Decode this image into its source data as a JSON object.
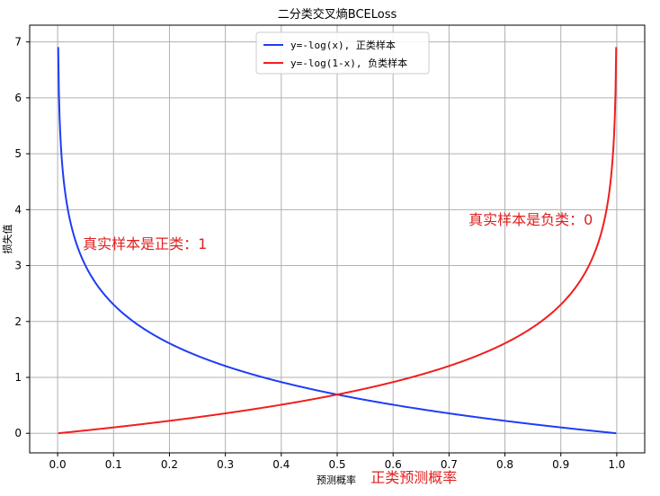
{
  "chart_data": {
    "type": "line",
    "title": "二分类交叉熵BCELoss",
    "xlabel": "预测概率",
    "ylabel": "损失值",
    "xlim": [
      -0.05,
      1.05
    ],
    "ylim": [
      -0.35,
      7.3
    ],
    "xticks": [
      0.0,
      0.1,
      0.2,
      0.3,
      0.4,
      0.5,
      0.6,
      0.7,
      0.8,
      0.9,
      1.0
    ],
    "xtick_labels": [
      "0.0",
      "0.1",
      "0.2",
      "0.3",
      "0.4",
      "0.5",
      "0.6",
      "0.7",
      "0.8",
      "0.9",
      "1.0"
    ],
    "yticks": [
      0,
      1,
      2,
      3,
      4,
      5,
      6,
      7
    ],
    "ytick_labels": [
      "0",
      "1",
      "2",
      "3",
      "4",
      "5",
      "6",
      "7"
    ],
    "grid": true,
    "legend_position": "top-center",
    "series": [
      {
        "name": "y=-log(x), 正类样本",
        "color": "#1f3df5",
        "function": "-log(x)",
        "x_range": [
          0.001,
          0.999
        ]
      },
      {
        "name": "y=-log(1-x), 负类样本",
        "color": "#f01f1f",
        "function": "-log(1-x)",
        "x_range": [
          0.001,
          0.999
        ]
      }
    ],
    "annotations": [
      {
        "text": "真实样本是正类：1",
        "x": 0.045,
        "y": 3.3,
        "color": "#e02020"
      },
      {
        "text": "真实样本是负类：0",
        "x": 0.735,
        "y": 3.73,
        "color": "#e02020"
      },
      {
        "text": "正类预测概率",
        "x": 0.56,
        "y": -0.88,
        "color": "#e02020"
      }
    ]
  }
}
